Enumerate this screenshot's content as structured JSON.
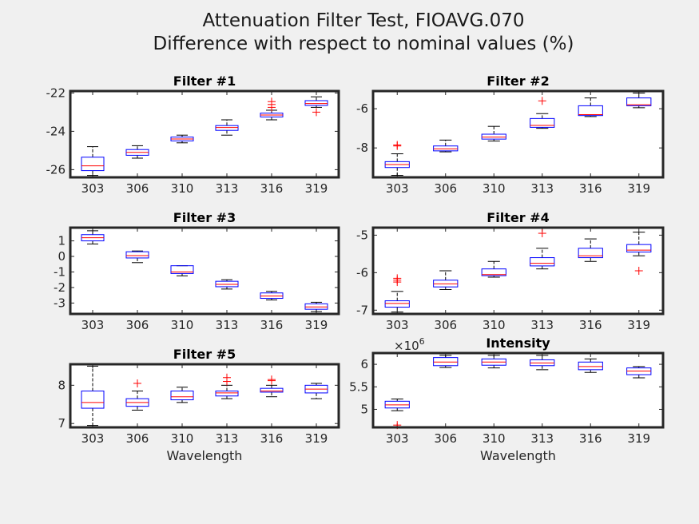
{
  "figure": {
    "title_line1": "Attenuation Filter Test, FIOAVG.070",
    "title_line2": "Difference with respect to nominal values (%)"
  },
  "colors": {
    "box": "#0000ff",
    "median": "#ff0000",
    "whisker": "#000000",
    "outlier": "#ff0000",
    "axes_bg": "#ffffff",
    "figure_bg": "#f0f0f0"
  },
  "chart_data": [
    {
      "type": "box",
      "title": "Filter #1",
      "categories": [
        "303",
        "306",
        "310",
        "313",
        "316",
        "319"
      ],
      "xlabel": "",
      "ylabel": "",
      "ylim": [
        -26.4,
        -21.9
      ],
      "yticks": [
        -26,
        -24,
        -22
      ],
      "ytick_labels": [
        "-26",
        "-24",
        "-22"
      ],
      "multiplier": "",
      "boxes": [
        {
          "whislo": -26.3,
          "q1": -26.05,
          "med": -25.8,
          "q3": -25.35,
          "whishi": -24.8,
          "fliers": []
        },
        {
          "whislo": -25.4,
          "q1": -25.25,
          "med": -25.1,
          "q3": -24.95,
          "whishi": -24.75,
          "fliers": []
        },
        {
          "whislo": -24.6,
          "q1": -24.5,
          "med": -24.4,
          "q3": -24.3,
          "whishi": -24.2,
          "fliers": []
        },
        {
          "whislo": -24.2,
          "q1": -23.95,
          "med": -23.8,
          "q3": -23.7,
          "whishi": -23.4,
          "fliers": []
        },
        {
          "whislo": -23.4,
          "q1": -23.25,
          "med": -23.15,
          "q3": -23.05,
          "whishi": -22.9,
          "fliers": [
            -22.6,
            -22.75,
            -22.45
          ]
        },
        {
          "whislo": -22.75,
          "q1": -22.65,
          "med": -22.55,
          "q3": -22.4,
          "whishi": -22.2,
          "fliers": [
            -23.0
          ]
        }
      ]
    },
    {
      "type": "box",
      "title": "Filter #2",
      "categories": [
        "303",
        "306",
        "310",
        "313",
        "316",
        "319"
      ],
      "xlabel": "",
      "ylabel": "",
      "ylim": [
        -9.5,
        -5.1
      ],
      "yticks": [
        -8,
        -6
      ],
      "ytick_labels": [
        "-8",
        "-6"
      ],
      "multiplier": "",
      "boxes": [
        {
          "whislo": -9.4,
          "q1": -9.0,
          "med": -8.85,
          "q3": -8.7,
          "whishi": -8.3,
          "fliers": [
            -7.9,
            -7.85
          ]
        },
        {
          "whislo": -8.2,
          "q1": -8.15,
          "med": -8.05,
          "q3": -7.9,
          "whishi": -7.6,
          "fliers": []
        },
        {
          "whislo": -7.65,
          "q1": -7.55,
          "med": -7.45,
          "q3": -7.3,
          "whishi": -6.9,
          "fliers": []
        },
        {
          "whislo": -7.0,
          "q1": -6.95,
          "med": -6.85,
          "q3": -6.5,
          "whishi": -6.25,
          "fliers": [
            -5.6
          ]
        },
        {
          "whislo": -6.4,
          "q1": -6.35,
          "med": -6.3,
          "q3": -5.85,
          "whishi": -5.45,
          "fliers": []
        },
        {
          "whislo": -5.95,
          "q1": -5.85,
          "med": -5.8,
          "q3": -5.45,
          "whishi": -5.2,
          "fliers": []
        }
      ]
    },
    {
      "type": "box",
      "title": "Filter #3",
      "categories": [
        "303",
        "306",
        "310",
        "313",
        "316",
        "319"
      ],
      "xlabel": "",
      "ylabel": "",
      "ylim": [
        -3.7,
        1.85
      ],
      "yticks": [
        -3,
        -2,
        -1,
        0,
        1
      ],
      "ytick_labels": [
        "-3",
        "-2",
        "-1",
        "0",
        "1"
      ],
      "multiplier": "",
      "boxes": [
        {
          "whislo": 0.8,
          "q1": 1.0,
          "med": 1.2,
          "q3": 1.4,
          "whishi": 1.65,
          "fliers": []
        },
        {
          "whislo": -0.4,
          "q1": -0.1,
          "med": 0.05,
          "q3": 0.3,
          "whishi": 0.35,
          "fliers": []
        },
        {
          "whislo": -1.25,
          "q1": -1.1,
          "med": -1.0,
          "q3": -0.6,
          "whishi": -0.6,
          "fliers": []
        },
        {
          "whislo": -2.1,
          "q1": -1.95,
          "med": -1.8,
          "q3": -1.6,
          "whishi": -1.5,
          "fliers": []
        },
        {
          "whislo": -2.8,
          "q1": -2.7,
          "med": -2.55,
          "q3": -2.35,
          "whishi": -2.25,
          "fliers": []
        },
        {
          "whislo": -3.55,
          "q1": -3.4,
          "med": -3.25,
          "q3": -3.05,
          "whishi": -2.95,
          "fliers": []
        }
      ]
    },
    {
      "type": "box",
      "title": "Filter #4",
      "categories": [
        "303",
        "306",
        "310",
        "313",
        "316",
        "319"
      ],
      "xlabel": "",
      "ylabel": "",
      "ylim": [
        -7.1,
        -4.8
      ],
      "yticks": [
        -7,
        -6,
        -5
      ],
      "ytick_labels": [
        "-7",
        "-6",
        "-5"
      ],
      "multiplier": "",
      "boxes": [
        {
          "whislo": -7.05,
          "q1": -6.92,
          "med": -6.82,
          "q3": -6.75,
          "whishi": -6.5,
          "fliers": [
            -6.15,
            -6.2,
            -6.25
          ]
        },
        {
          "whislo": -6.45,
          "q1": -6.38,
          "med": -6.3,
          "q3": -6.2,
          "whishi": -5.95,
          "fliers": []
        },
        {
          "whislo": -6.12,
          "q1": -6.08,
          "med": -6.05,
          "q3": -5.9,
          "whishi": -5.7,
          "fliers": []
        },
        {
          "whislo": -5.9,
          "q1": -5.82,
          "med": -5.75,
          "q3": -5.6,
          "whishi": -5.35,
          "fliers": [
            -4.95
          ]
        },
        {
          "whislo": -5.7,
          "q1": -5.6,
          "med": -5.55,
          "q3": -5.35,
          "whishi": -5.1,
          "fliers": []
        },
        {
          "whislo": -5.55,
          "q1": -5.45,
          "med": -5.4,
          "q3": -5.25,
          "whishi": -4.92,
          "fliers": [
            -5.95
          ]
        }
      ]
    },
    {
      "type": "box",
      "title": "Filter #5",
      "categories": [
        "303",
        "306",
        "310",
        "313",
        "316",
        "319"
      ],
      "xlabel": "Wavelength",
      "ylabel": "",
      "ylim": [
        6.9,
        8.55
      ],
      "yticks": [
        7,
        8
      ],
      "ytick_labels": [
        "7",
        "8"
      ],
      "multiplier": "",
      "boxes": [
        {
          "whislo": 6.95,
          "q1": 7.4,
          "med": 7.55,
          "q3": 7.85,
          "whishi": 8.5,
          "fliers": []
        },
        {
          "whislo": 7.35,
          "q1": 7.45,
          "med": 7.55,
          "q3": 7.65,
          "whishi": 7.85,
          "fliers": [
            8.05
          ]
        },
        {
          "whislo": 7.55,
          "q1": 7.62,
          "med": 7.7,
          "q3": 7.85,
          "whishi": 7.95,
          "fliers": []
        },
        {
          "whislo": 7.65,
          "q1": 7.72,
          "med": 7.8,
          "q3": 7.85,
          "whishi": 8.0,
          "fliers": [
            8.2,
            8.1
          ]
        },
        {
          "whislo": 7.7,
          "q1": 7.82,
          "med": 7.85,
          "q3": 7.92,
          "whishi": 8.0,
          "fliers": [
            8.15,
            8.12
          ]
        },
        {
          "whislo": 7.65,
          "q1": 7.8,
          "med": 7.9,
          "q3": 8.0,
          "whishi": 8.05,
          "fliers": []
        }
      ]
    },
    {
      "type": "box",
      "title": "Intensity",
      "categories": [
        "303",
        "306",
        "310",
        "313",
        "316",
        "319"
      ],
      "xlabel": "Wavelength",
      "ylabel": "",
      "ylim": [
        4.6,
        6.25
      ],
      "yticks": [
        5,
        5.5,
        6
      ],
      "ytick_labels": [
        "5",
        "5.5",
        "6"
      ],
      "multiplier": "×10",
      "multiplier_exp": "6",
      "boxes": [
        {
          "whislo": 4.97,
          "q1": 5.03,
          "med": 5.1,
          "q3": 5.18,
          "whishi": 5.23,
          "fliers": [
            4.65
          ]
        },
        {
          "whislo": 5.93,
          "q1": 5.97,
          "med": 6.05,
          "q3": 6.15,
          "whishi": 6.2,
          "fliers": []
        },
        {
          "whislo": 5.92,
          "q1": 5.98,
          "med": 6.05,
          "q3": 6.12,
          "whishi": 6.2,
          "fliers": []
        },
        {
          "whislo": 5.88,
          "q1": 5.97,
          "med": 6.03,
          "q3": 6.1,
          "whishi": 6.2,
          "fliers": []
        },
        {
          "whislo": 5.82,
          "q1": 5.88,
          "med": 5.95,
          "q3": 6.05,
          "whishi": 6.12,
          "fliers": []
        },
        {
          "whislo": 5.7,
          "q1": 5.77,
          "med": 5.85,
          "q3": 5.92,
          "whishi": 5.95,
          "fliers": []
        }
      ]
    }
  ]
}
